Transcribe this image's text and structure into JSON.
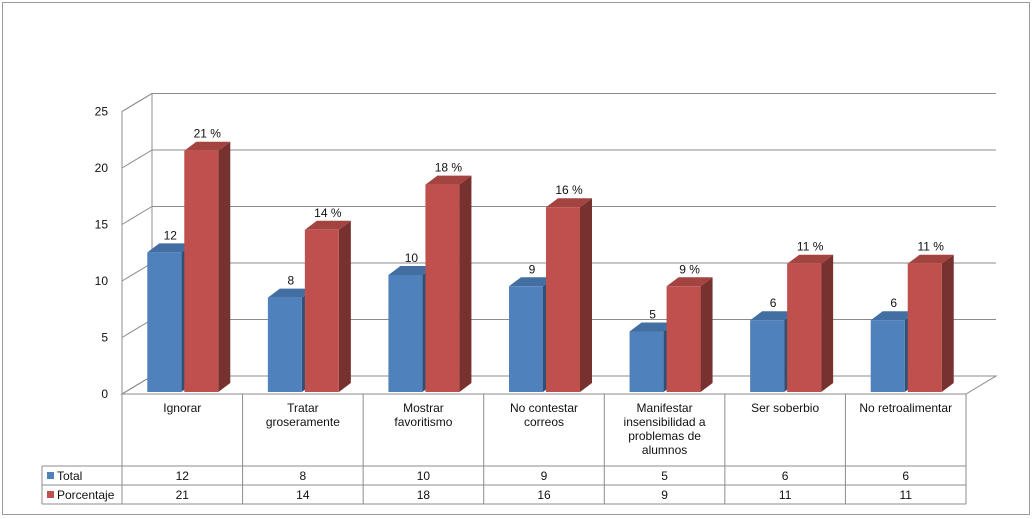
{
  "chart_data": {
    "type": "bar",
    "categories": [
      "Ignorar",
      "Tratar groseramente",
      "Mostrar favoritismo",
      "No contestar correos",
      "Manifestar insensibilidad a problemas de alumnos",
      "Ser soberbio",
      "No retroalimentar"
    ],
    "category_lines": [
      [
        "Ignorar"
      ],
      [
        "Tratar",
        "groseramente"
      ],
      [
        "Mostrar",
        "favoritismo"
      ],
      [
        "No contestar",
        "correos"
      ],
      [
        "Manifestar",
        "insensibilidad a",
        "problemas de",
        "alumnos"
      ],
      [
        "Ser soberbio"
      ],
      [
        "No retroalimentar"
      ]
    ],
    "series": [
      {
        "name": "Total",
        "values": [
          12,
          8,
          10,
          9,
          5,
          6,
          6
        ],
        "color": "#4f81bd",
        "labels": [
          "12",
          "8",
          "10",
          "9",
          "5",
          "6",
          "6"
        ]
      },
      {
        "name": "Porcentaje",
        "values": [
          21,
          14,
          18,
          16,
          9,
          11,
          11
        ],
        "color": "#c0504d",
        "labels": [
          "21 %",
          "14 %",
          "18 %",
          "16 %",
          "9 %",
          "11 %",
          "11 %"
        ]
      }
    ],
    "table_rows": [
      {
        "name": "Total",
        "cells": [
          "12",
          "8",
          "10",
          "9",
          "5",
          "6",
          "6"
        ]
      },
      {
        "name": "Porcentaje",
        "cells": [
          "21",
          "14",
          "18",
          "16",
          "9",
          "11",
          "11"
        ]
      }
    ],
    "yticks": [
      "0",
      "5",
      "10",
      "15",
      "20",
      "25"
    ],
    "ylim": [
      0,
      25
    ],
    "grid": true,
    "three_d": true,
    "legend": "data-table"
  }
}
